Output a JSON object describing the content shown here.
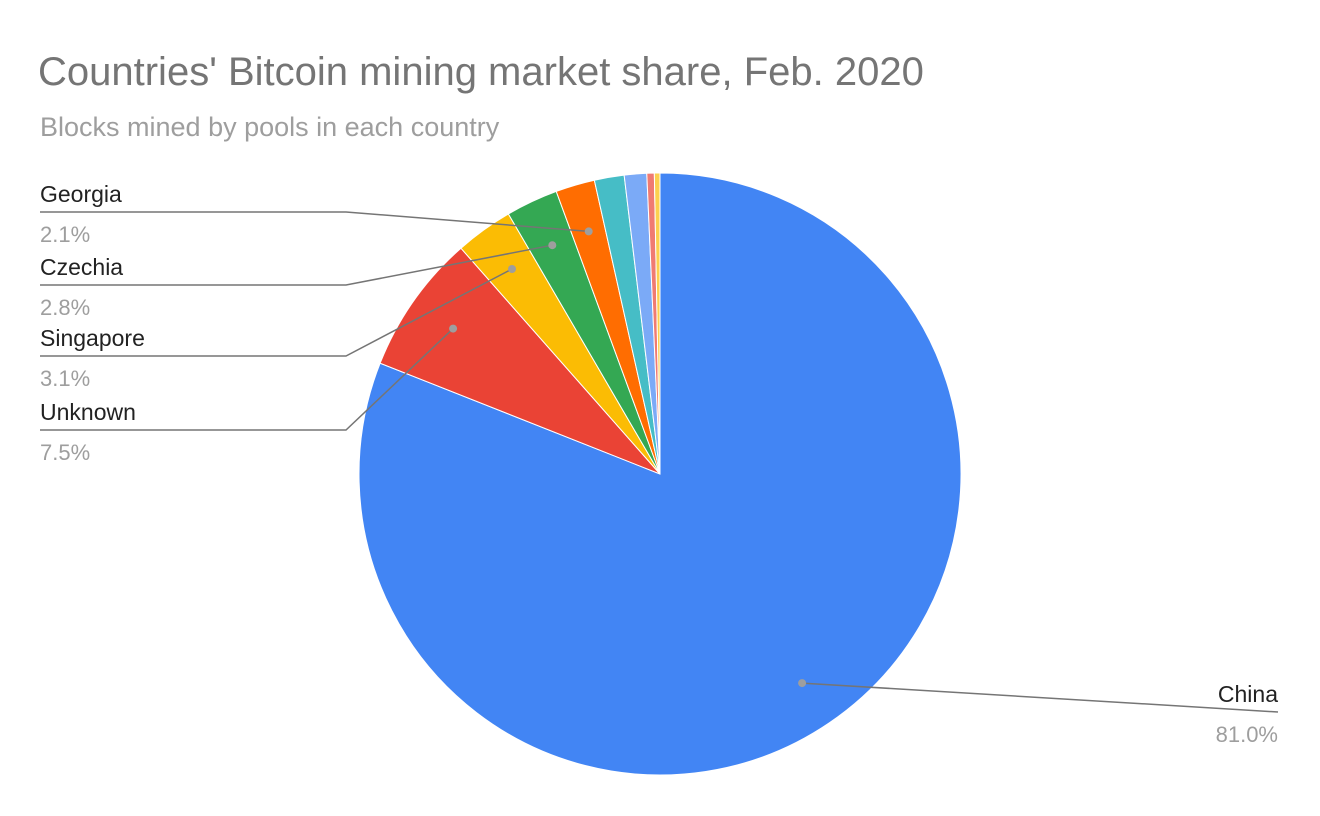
{
  "chart_data": {
    "type": "pie",
    "title": "Countries' Bitcoin mining market share, Feb. 2020",
    "subtitle": "Blocks mined by pools in each country",
    "slices": [
      {
        "label": "China",
        "value": 81.0,
        "display": "81.0%",
        "color": "#4285f4",
        "labeled": true
      },
      {
        "label": "Unknown",
        "value": 7.5,
        "display": "7.5%",
        "color": "#ea4335",
        "labeled": true
      },
      {
        "label": "Singapore",
        "value": 3.1,
        "display": "3.1%",
        "color": "#fbbc04",
        "labeled": true
      },
      {
        "label": "Czechia",
        "value": 2.8,
        "display": "2.8%",
        "color": "#34a853",
        "labeled": true
      },
      {
        "label": "Georgia",
        "value": 2.1,
        "display": "2.1%",
        "color": "#ff6d01",
        "labeled": true
      },
      {
        "label": "",
        "value": 1.6,
        "display": "",
        "color": "#46bdc6",
        "labeled": false
      },
      {
        "label": "",
        "value": 1.2,
        "display": "",
        "color": "#7baaf7",
        "labeled": false
      },
      {
        "label": "",
        "value": 0.4,
        "display": "",
        "color": "#f07b72",
        "labeled": false
      },
      {
        "label": "",
        "value": 0.3,
        "display": "",
        "color": "#fcd04f",
        "labeled": false
      }
    ],
    "start_angle": "12 o'clock",
    "direction": "clockwise",
    "legend": "none"
  }
}
